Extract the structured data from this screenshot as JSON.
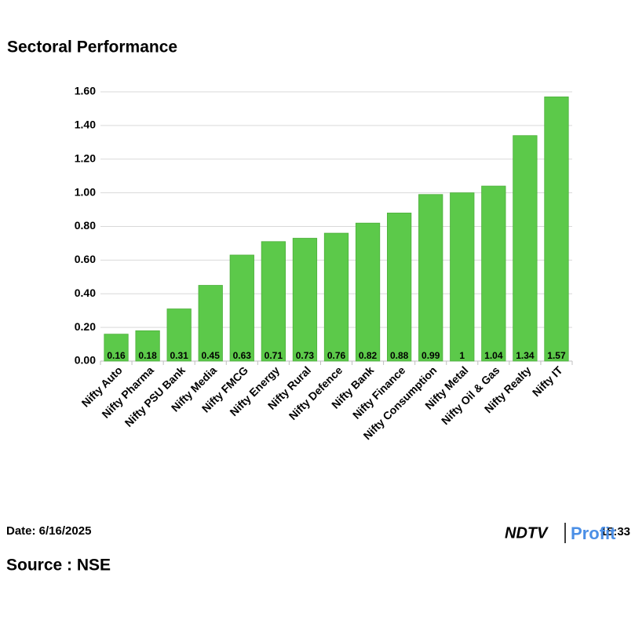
{
  "chart_data": {
    "type": "bar",
    "title": "Sectoral Performance",
    "categories": [
      "Nifty Auto",
      "Nifty Pharma",
      "Nifty PSU Bank",
      "Nifty Media",
      "Nifty FMCG",
      "Nifty Energy",
      "Nifty Rural",
      "Nifty Defence",
      "Nifty Bank",
      "Nifty Finance",
      "Nifty Consumption",
      "Nifty Metal",
      "Nifty Oil & Gas",
      "Nifty Realty",
      "Nifty IT"
    ],
    "values": [
      0.16,
      0.18,
      0.31,
      0.45,
      0.63,
      0.71,
      0.73,
      0.76,
      0.82,
      0.88,
      0.99,
      1,
      1.04,
      1.34,
      1.57
    ],
    "color": "#5cc94a",
    "ylim": [
      0,
      1.6
    ],
    "yticks": [
      {
        "value": 0,
        "label": "0.00"
      },
      {
        "value": 0.2,
        "label": "0.20"
      },
      {
        "value": 0.4,
        "label": "0.40"
      },
      {
        "value": 0.6,
        "label": "0.60"
      },
      {
        "value": 0.8,
        "label": "0.80"
      },
      {
        "value": 1,
        "label": "1.00"
      },
      {
        "value": 1.2,
        "label": "1.20"
      },
      {
        "value": 1.4,
        "label": "1.40"
      },
      {
        "value": 1.6,
        "label": "1.60"
      }
    ],
    "grid": true
  },
  "footer": {
    "date": "Date: 6/16/2025",
    "time": "Time: 15:33",
    "source": "Source : NSE",
    "logo": {
      "brand": "NDTV",
      "product": "Profit"
    }
  }
}
